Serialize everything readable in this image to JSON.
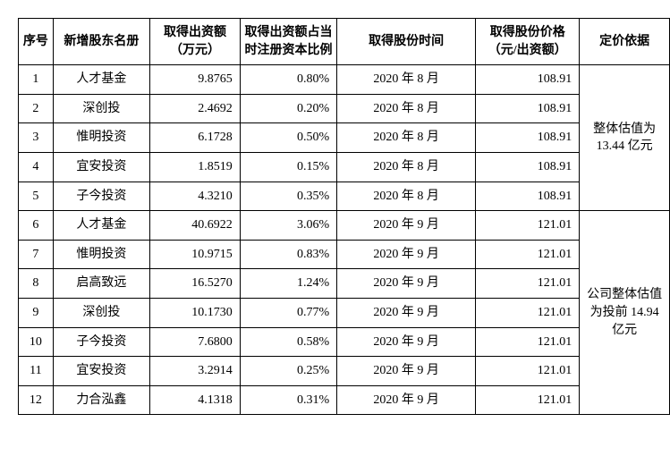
{
  "table": {
    "columns": [
      {
        "key": "idx",
        "label": "序号",
        "width_pct": 5,
        "align": "center"
      },
      {
        "key": "name",
        "label": "新增股东名册",
        "width_pct": 14,
        "align": "center"
      },
      {
        "key": "amt",
        "label": "取得出资额（万元）",
        "width_pct": 13,
        "align": "right"
      },
      {
        "key": "pct",
        "label": "取得出资额占当时注册资本比例",
        "width_pct": 14,
        "align": "right"
      },
      {
        "key": "time",
        "label": "取得股份时间",
        "width_pct": 20,
        "align": "center"
      },
      {
        "key": "price",
        "label": "取得股份价格（元/出资额）",
        "width_pct": 15,
        "align": "right"
      },
      {
        "key": "basis",
        "label": "定价依据",
        "width_pct": 13,
        "align": "center"
      }
    ],
    "header_fontsize": 14,
    "header_fontweight": "bold",
    "cell_fontsize": 14,
    "border_color": "#000000",
    "background_color": "#ffffff",
    "basis_groups": [
      {
        "rowspan": 5,
        "text": "整体估值为 13.44 亿元"
      },
      {
        "rowspan": 7,
        "text": "公司整体估值为投前 14.94 亿元"
      }
    ],
    "rows": [
      {
        "idx": "1",
        "name": "人才基金",
        "amt": "9.8765",
        "pct": "0.80%",
        "time": "2020 年 8 月",
        "price": "108.91"
      },
      {
        "idx": "2",
        "name": "深创投",
        "amt": "2.4692",
        "pct": "0.20%",
        "time": "2020 年 8 月",
        "price": "108.91"
      },
      {
        "idx": "3",
        "name": "惟明投资",
        "amt": "6.1728",
        "pct": "0.50%",
        "time": "2020 年 8 月",
        "price": "108.91"
      },
      {
        "idx": "4",
        "name": "宜安投资",
        "amt": "1.8519",
        "pct": "0.15%",
        "time": "2020 年 8 月",
        "price": "108.91"
      },
      {
        "idx": "5",
        "name": "子今投资",
        "amt": "4.3210",
        "pct": "0.35%",
        "time": "2020 年 8 月",
        "price": "108.91"
      },
      {
        "idx": "6",
        "name": "人才基金",
        "amt": "40.6922",
        "pct": "3.06%",
        "time": "2020 年 9 月",
        "price": "121.01"
      },
      {
        "idx": "7",
        "name": "惟明投资",
        "amt": "10.9715",
        "pct": "0.83%",
        "time": "2020 年 9 月",
        "price": "121.01"
      },
      {
        "idx": "8",
        "name": "启高致远",
        "amt": "16.5270",
        "pct": "1.24%",
        "time": "2020 年 9 月",
        "price": "121.01"
      },
      {
        "idx": "9",
        "name": "深创投",
        "amt": "10.1730",
        "pct": "0.77%",
        "time": "2020 年 9 月",
        "price": "121.01"
      },
      {
        "idx": "10",
        "name": "子今投资",
        "amt": "7.6800",
        "pct": "0.58%",
        "time": "2020 年 9 月",
        "price": "121.01"
      },
      {
        "idx": "11",
        "name": "宜安投资",
        "amt": "3.2914",
        "pct": "0.25%",
        "time": "2020 年 9 月",
        "price": "121.01"
      },
      {
        "idx": "12",
        "name": "力合泓鑫",
        "amt": "4.1318",
        "pct": "0.31%",
        "time": "2020 年 9 月",
        "price": "121.01"
      }
    ]
  }
}
